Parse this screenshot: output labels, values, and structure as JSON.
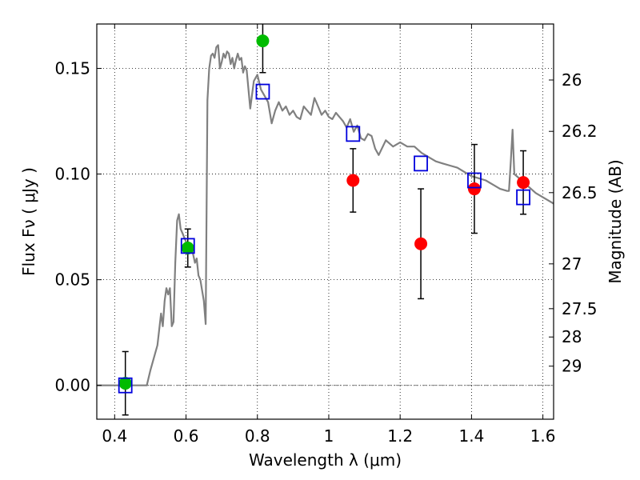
{
  "chart_data": {
    "type": "scatter",
    "xlabel": "Wavelength  λ (μm)",
    "ylabel": "Flux  Fν  ( μJy )",
    "y2label": "Magnitude (AB)",
    "xlim": [
      0.35,
      1.63
    ],
    "ylim": [
      -0.016,
      0.171
    ],
    "grid": true,
    "x_ticks": [
      0.4,
      0.6,
      0.8,
      1.0,
      1.2,
      1.4,
      1.6
    ],
    "x_tick_labels": [
      "0.4",
      "0.6",
      "0.8",
      "1",
      "1.2",
      "1.4",
      "1.6"
    ],
    "y_ticks": [
      0.0,
      0.05,
      0.1,
      0.15
    ],
    "y_tick_labels": [
      "0.00",
      "0.05",
      "0.10",
      "0.15"
    ],
    "right_ticks": [
      {
        "label": "26",
        "flux": 0.1445
      },
      {
        "label": "26.2",
        "flux": 0.1202
      },
      {
        "label": "26.5",
        "flux": 0.0912
      },
      {
        "label": "27",
        "flux": 0.0575
      },
      {
        "label": "27.5",
        "flux": 0.0363
      },
      {
        "label": "28",
        "flux": 0.0229
      },
      {
        "label": "29",
        "flux": 0.0091
      }
    ],
    "zero_line": 0.0,
    "series": [
      {
        "kind": "model_spectrum",
        "color": "#808080",
        "x": [
          0.35,
          0.49,
          0.5,
          0.52,
          0.53,
          0.535,
          0.54,
          0.545,
          0.55,
          0.555,
          0.56,
          0.565,
          0.57,
          0.575,
          0.58,
          0.585,
          0.59,
          0.595,
          0.6,
          0.605,
          0.61,
          0.615,
          0.62,
          0.625,
          0.63,
          0.635,
          0.64,
          0.645,
          0.65,
          0.655,
          0.66,
          0.665,
          0.67,
          0.675,
          0.68,
          0.685,
          0.69,
          0.695,
          0.7,
          0.705,
          0.71,
          0.715,
          0.72,
          0.725,
          0.73,
          0.735,
          0.74,
          0.745,
          0.75,
          0.755,
          0.76,
          0.765,
          0.77,
          0.78,
          0.79,
          0.8,
          0.81,
          0.82,
          0.83,
          0.84,
          0.85,
          0.86,
          0.87,
          0.88,
          0.89,
          0.9,
          0.91,
          0.92,
          0.93,
          0.94,
          0.95,
          0.96,
          0.97,
          0.98,
          0.99,
          1.0,
          1.01,
          1.02,
          1.03,
          1.04,
          1.05,
          1.06,
          1.07,
          1.08,
          1.09,
          1.1,
          1.11,
          1.12,
          1.13,
          1.14,
          1.16,
          1.18,
          1.2,
          1.22,
          1.24,
          1.26,
          1.28,
          1.3,
          1.32,
          1.34,
          1.36,
          1.38,
          1.4,
          1.42,
          1.44,
          1.46,
          1.48,
          1.5,
          1.505,
          1.51,
          1.515,
          1.52,
          1.54,
          1.56,
          1.58,
          1.6,
          1.63
        ],
        "y": [
          0.0,
          0.0,
          0.007,
          0.019,
          0.034,
          0.028,
          0.04,
          0.046,
          0.043,
          0.046,
          0.028,
          0.03,
          0.058,
          0.078,
          0.081,
          0.074,
          0.072,
          0.07,
          0.068,
          0.066,
          0.064,
          0.066,
          0.062,
          0.058,
          0.06,
          0.052,
          0.05,
          0.045,
          0.04,
          0.029,
          0.135,
          0.15,
          0.156,
          0.157,
          0.155,
          0.16,
          0.161,
          0.15,
          0.153,
          0.157,
          0.155,
          0.158,
          0.157,
          0.152,
          0.155,
          0.15,
          0.154,
          0.157,
          0.154,
          0.155,
          0.148,
          0.151,
          0.149,
          0.131,
          0.144,
          0.147,
          0.14,
          0.137,
          0.134,
          0.124,
          0.13,
          0.134,
          0.13,
          0.132,
          0.128,
          0.13,
          0.127,
          0.126,
          0.132,
          0.13,
          0.128,
          0.136,
          0.132,
          0.128,
          0.13,
          0.127,
          0.126,
          0.129,
          0.127,
          0.125,
          0.122,
          0.126,
          0.12,
          0.123,
          0.117,
          0.116,
          0.119,
          0.118,
          0.112,
          0.109,
          0.116,
          0.113,
          0.115,
          0.113,
          0.113,
          0.11,
          0.108,
          0.106,
          0.105,
          0.104,
          0.103,
          0.101,
          0.099,
          0.098,
          0.097,
          0.095,
          0.093,
          0.092,
          0.092,
          0.106,
          0.121,
          0.1,
          0.097,
          0.094,
          0.091,
          0.089,
          0.086
        ]
      },
      {
        "kind": "points_with_errors",
        "color": "#00bb00",
        "x": [
          0.43,
          0.605,
          0.815
        ],
        "y": [
          0.001,
          0.065,
          0.163
        ],
        "yerr": [
          0.015,
          0.009,
          0.015
        ]
      },
      {
        "kind": "points_with_errors",
        "color": "#ff0000",
        "x": [
          1.068,
          1.258,
          1.408,
          1.545
        ],
        "y": [
          0.097,
          0.067,
          0.093,
          0.096
        ],
        "yerr": [
          0.015,
          0.026,
          0.021,
          0.015
        ]
      },
      {
        "kind": "open_squares",
        "color": "#0000dd",
        "x": [
          0.43,
          0.605,
          0.815,
          1.068,
          1.258,
          1.408,
          1.545
        ],
        "y": [
          0.0,
          0.066,
          0.139,
          0.119,
          0.105,
          0.097,
          0.089
        ]
      }
    ]
  }
}
